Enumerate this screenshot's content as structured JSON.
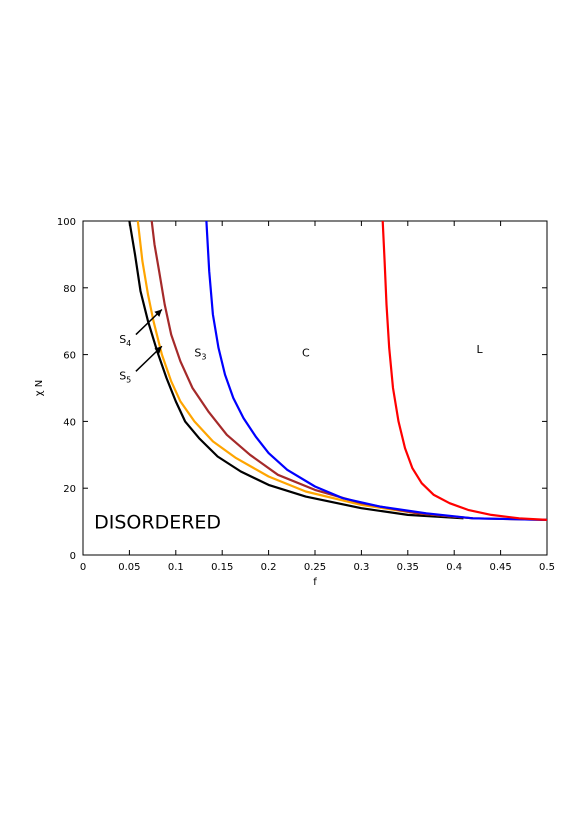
{
  "chart_data": {
    "type": "line",
    "title": "",
    "xlabel": "f",
    "ylabel": "χ N",
    "xlim": [
      0,
      0.5
    ],
    "ylim": [
      0,
      100
    ],
    "xticks": [
      "0",
      "0.05",
      "0.1",
      "0.15",
      "0.2",
      "0.25",
      "0.3",
      "0.35",
      "0.4",
      "0.45",
      "0.5"
    ],
    "yticks": [
      "0",
      "20",
      "40",
      "60",
      "80",
      "100"
    ],
    "grid": false,
    "series": [
      {
        "color": "#000000",
        "x": [
          0.05,
          0.056,
          0.062,
          0.07,
          0.08,
          0.09,
          0.1,
          0.11,
          0.125,
          0.145,
          0.17,
          0.2,
          0.24,
          0.3,
          0.35,
          0.41
        ],
        "y": [
          100,
          90,
          79,
          70,
          61,
          53,
          46,
          40,
          35,
          29.5,
          25,
          21,
          17.5,
          14,
          12,
          11
        ]
      },
      {
        "color": "#ffa500",
        "x": [
          0.059,
          0.064,
          0.07,
          0.076,
          0.085,
          0.095,
          0.105,
          0.12,
          0.14,
          0.165,
          0.2,
          0.24,
          0.3,
          0.36,
          0.42
        ],
        "y": [
          100,
          88,
          78,
          70,
          60,
          52,
          46,
          40,
          34,
          29,
          23.5,
          19,
          15,
          12.5,
          11
        ]
      },
      {
        "color": "#a52a2a",
        "x": [
          0.074,
          0.077,
          0.082,
          0.088,
          0.095,
          0.105,
          0.118,
          0.135,
          0.155,
          0.18,
          0.21,
          0.25,
          0.3,
          0.36,
          0.42,
          0.5
        ],
        "y": [
          100,
          93,
          85,
          75,
          66,
          58,
          50,
          43,
          36,
          30,
          24,
          19.5,
          15.5,
          12.5,
          11,
          10.5
        ]
      },
      {
        "color": "#0000ff",
        "x": [
          0.133,
          0.136,
          0.14,
          0.146,
          0.153,
          0.162,
          0.173,
          0.186,
          0.2,
          0.22,
          0.25,
          0.28,
          0.32,
          0.37,
          0.42,
          0.5
        ],
        "y": [
          100,
          85,
          72,
          62,
          54,
          47,
          41,
          35.5,
          30.5,
          25.5,
          20.5,
          17,
          14.5,
          12.5,
          11,
          10.5
        ]
      },
      {
        "color": "#ff0000",
        "x": [
          0.323,
          0.325,
          0.327,
          0.33,
          0.334,
          0.34,
          0.347,
          0.355,
          0.365,
          0.378,
          0.395,
          0.415,
          0.44,
          0.47,
          0.5
        ],
        "y": [
          100,
          88,
          75,
          62,
          50,
          40,
          32,
          26,
          21.5,
          18,
          15.5,
          13.5,
          12,
          11,
          10.5
        ]
      }
    ],
    "region_labels": {
      "c": "C",
      "l": "L",
      "s3": {
        "main": "S",
        "sub": "3"
      },
      "s4": {
        "main": "S",
        "sub": "4"
      },
      "s5": {
        "main": "S",
        "sub": "5"
      },
      "disordered": "DISORDERED"
    },
    "annotations": {
      "s3": {
        "x": 0.12,
        "y": 59.5
      },
      "c": {
        "x": 0.236,
        "y": 59.5
      },
      "l": {
        "x": 0.424,
        "y": 60.5
      },
      "s4": {
        "x": 0.039,
        "y": 63.5
      },
      "s5": {
        "x": 0.039,
        "y": 52.5
      },
      "disordered": {
        "x": 0.012,
        "y": 8
      },
      "arrow_s4": {
        "from": [
          0.057,
          66
        ],
        "to": [
          0.085,
          73.5
        ]
      },
      "arrow_s5": {
        "from": [
          0.057,
          55
        ],
        "to": [
          0.085,
          62.5
        ]
      }
    }
  }
}
